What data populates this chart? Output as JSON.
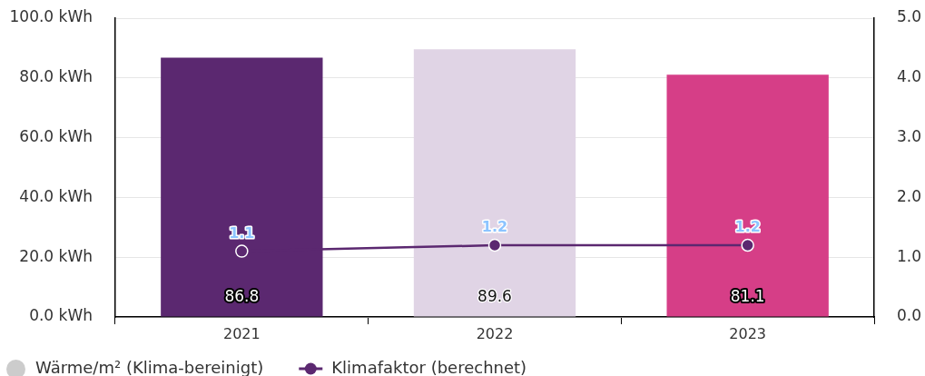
{
  "chart_data": {
    "type": "bar",
    "categories": [
      "2021",
      "2022",
      "2023"
    ],
    "series": [
      {
        "name": "Wärme/m² (Klima-bereinigt)",
        "colors": [
          "#5b2870",
          "#e0d4e5",
          "#d63e87"
        ],
        "values": [
          86.8,
          89.6,
          81.1
        ]
      },
      {
        "name": "Klimafaktor (berechnet)",
        "type": "line",
        "axis": "y2",
        "color": "#5b2870",
        "marker": "circle",
        "values": [
          1.1,
          1.2,
          1.2
        ]
      }
    ],
    "ylim": [
      0,
      100
    ],
    "yticks": [
      {
        "value": 0,
        "label": "0.0 kWh"
      },
      {
        "value": 20,
        "label": "20.0 kWh"
      },
      {
        "value": 40,
        "label": "40.0 kWh"
      },
      {
        "value": 60,
        "label": "60.0 kWh"
      },
      {
        "value": 80,
        "label": "80.0 kWh"
      },
      {
        "value": 100,
        "label": "100.0 kWh"
      }
    ],
    "y2lim": [
      0,
      5
    ],
    "y2ticks": [
      {
        "value": 0,
        "label": "0.0"
      },
      {
        "value": 1,
        "label": "1.0"
      },
      {
        "value": 2,
        "label": "2.0"
      },
      {
        "value": 3,
        "label": "3.0"
      },
      {
        "value": 4,
        "label": "4.0"
      },
      {
        "value": 5,
        "label": "5.0"
      }
    ],
    "grid": "y",
    "legend": "bottom left",
    "data_labels": true
  }
}
